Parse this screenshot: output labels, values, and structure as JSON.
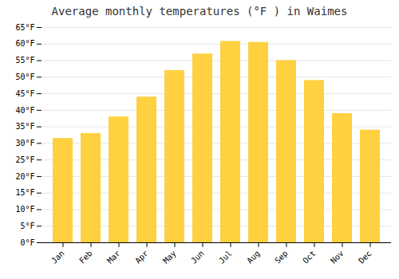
{
  "chart_data": {
    "type": "bar",
    "title": "Average monthly temperatures (°F ) in Waimes",
    "categories": [
      "Jan",
      "Feb",
      "Mar",
      "Apr",
      "May",
      "Jun",
      "Jul",
      "Aug",
      "Sep",
      "Oct",
      "Nov",
      "Dec"
    ],
    "values": [
      31.5,
      33.0,
      38.0,
      44.0,
      52.0,
      57.0,
      60.8,
      60.5,
      55.0,
      49.0,
      39.0,
      34.0
    ],
    "color": "#FFD040",
    "ylim": [
      0,
      65
    ],
    "yticks": [
      {
        "value": 0,
        "label": "0°F"
      },
      {
        "value": 5,
        "label": "5°F"
      },
      {
        "value": 10,
        "label": "10°F"
      },
      {
        "value": 15,
        "label": "15°F"
      },
      {
        "value": 20,
        "label": "20°F"
      },
      {
        "value": 25,
        "label": "25°F"
      },
      {
        "value": 30,
        "label": "30°F"
      },
      {
        "value": 35,
        "label": "35°F"
      },
      {
        "value": 40,
        "label": "40°F"
      },
      {
        "value": 45,
        "label": "45°F"
      },
      {
        "value": 50,
        "label": "50°F"
      },
      {
        "value": 55,
        "label": "55°F"
      },
      {
        "value": 60,
        "label": "60°F"
      },
      {
        "value": 65,
        "label": "65°F"
      }
    ],
    "grid": true
  }
}
